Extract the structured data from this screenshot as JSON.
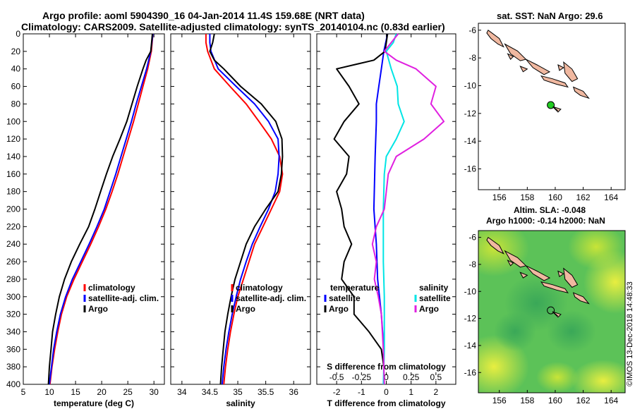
{
  "title_line1": "Argo profile: aoml 5904390_16 04-Jan-2014 11.4S 159.68E (NRT data)",
  "title_line2": "Climatology: CARS2009. Satellite-adjusted climatology: synTS_20140104.nc (0.83d earlier)",
  "watermark": "©IMOS 13-Dec-2018 14:48:33",
  "colors": {
    "climatology": "#ff0000",
    "satellite": "#0000ff",
    "argo": "#000000",
    "satellite_diff_s": "#00e5e5",
    "argo_diff_s": "#e020e0",
    "land": "#f0b8a0",
    "argo_marker": "#22cc22",
    "map_green": "#58c258",
    "map_yellow": "#e0e83a"
  },
  "chart_data": [
    {
      "type": "line",
      "id": "temperature",
      "xlabel": "temperature (deg C)",
      "xlim": [
        5,
        32
      ],
      "ylim": [
        400,
        0
      ],
      "xticks": [
        5,
        10,
        15,
        20,
        25,
        30
      ],
      "yticks": [
        0,
        20,
        40,
        60,
        80,
        100,
        120,
        140,
        160,
        180,
        200,
        220,
        240,
        260,
        280,
        300,
        320,
        340,
        360,
        380,
        400
      ],
      "legend": [
        "climatology",
        "satellite-adj. clim.",
        "Argo"
      ],
      "series": [
        {
          "name": "climatology",
          "color": "#ff0000",
          "depth": [
            0,
            20,
            40,
            60,
            80,
            100,
            120,
            140,
            160,
            180,
            200,
            220,
            240,
            260,
            280,
            300,
            320,
            340,
            360,
            380,
            400
          ],
          "values": [
            29.8,
            29.5,
            28.8,
            27.9,
            27.0,
            26.1,
            25.1,
            24.1,
            23.1,
            22.0,
            20.8,
            19.4,
            17.9,
            16.3,
            14.7,
            13.3,
            12.3,
            11.6,
            11.0,
            10.5,
            10.1
          ]
        },
        {
          "name": "satellite-adj. clim.",
          "color": "#0000ff",
          "depth": [
            0,
            20,
            40,
            60,
            80,
            100,
            120,
            140,
            160,
            180,
            200,
            220,
            240,
            260,
            280,
            300,
            320,
            340,
            360,
            380,
            400
          ],
          "values": [
            29.8,
            29.4,
            28.6,
            27.6,
            26.6,
            25.7,
            24.7,
            23.7,
            22.7,
            21.6,
            20.5,
            19.1,
            17.6,
            16.0,
            14.4,
            13.1,
            12.1,
            11.4,
            10.8,
            10.4,
            10.0
          ]
        },
        {
          "name": "Argo",
          "color": "#000000",
          "depth": [
            0,
            20,
            30,
            40,
            60,
            80,
            100,
            120,
            140,
            160,
            180,
            200,
            220,
            240,
            260,
            280,
            300,
            320,
            340,
            360,
            380,
            400
          ],
          "values": [
            29.7,
            29.4,
            28.5,
            27.9,
            26.8,
            25.8,
            24.8,
            23.5,
            22.1,
            20.9,
            19.8,
            18.7,
            17.5,
            15.8,
            14.2,
            12.9,
            11.9,
            11.2,
            10.6,
            10.3,
            10.0,
            9.8
          ]
        }
      ]
    },
    {
      "type": "line",
      "id": "salinity",
      "xlabel": "salinity",
      "xlim": [
        33.8,
        36.3
      ],
      "ylim": [
        400,
        0
      ],
      "xticks": [
        34,
        34.5,
        35,
        35.5,
        36
      ],
      "legend": [
        "climatology",
        "satellite-adj. clim.",
        "Argo"
      ],
      "series": [
        {
          "name": "climatology",
          "color": "#ff0000",
          "depth": [
            0,
            10,
            20,
            40,
            60,
            80,
            100,
            120,
            140,
            160,
            180,
            200,
            220,
            240,
            260,
            280,
            300,
            320,
            340,
            360,
            380,
            400
          ],
          "values": [
            34.43,
            34.43,
            34.46,
            34.58,
            34.86,
            35.15,
            35.38,
            35.6,
            35.75,
            35.8,
            35.75,
            35.6,
            35.45,
            35.3,
            35.2,
            35.1,
            35.0,
            34.93,
            34.87,
            34.82,
            34.78,
            34.75
          ]
        },
        {
          "name": "satellite-adj. clim.",
          "color": "#0000ff",
          "depth": [
            0,
            10,
            20,
            40,
            60,
            80,
            100,
            120,
            140,
            160,
            180,
            200,
            220,
            240,
            260,
            280,
            300,
            320,
            340,
            360,
            380,
            400
          ],
          "values": [
            34.5,
            34.5,
            34.52,
            34.65,
            34.97,
            35.3,
            35.55,
            35.72,
            35.74,
            35.72,
            35.67,
            35.55,
            35.4,
            35.26,
            35.15,
            35.05,
            34.97,
            34.9,
            34.84,
            34.79,
            34.75,
            34.72
          ]
        },
        {
          "name": "Argo",
          "color": "#000000",
          "depth": [
            0,
            10,
            20,
            30,
            40,
            60,
            80,
            100,
            120,
            140,
            160,
            180,
            200,
            220,
            240,
            260,
            280,
            300,
            320,
            340,
            360,
            380,
            400
          ],
          "values": [
            34.58,
            34.55,
            34.5,
            34.58,
            34.75,
            35.05,
            35.42,
            35.68,
            35.79,
            35.8,
            35.78,
            35.72,
            35.5,
            35.3,
            35.15,
            35.05,
            34.95,
            34.88,
            34.82,
            34.77,
            34.74,
            34.71,
            34.69
          ]
        }
      ]
    },
    {
      "type": "line",
      "id": "difference",
      "xlabel": "T difference from climatology",
      "top_xlabel": "S difference from climatology",
      "xlim": [
        -2.8,
        2.8
      ],
      "ylim": [
        400,
        0
      ],
      "xticks": [
        -2,
        -1,
        0,
        1,
        2
      ],
      "top_xlim": [
        -0.7,
        0.7
      ],
      "top_xticks": [
        -0.5,
        -0.25,
        0,
        0.25,
        0.5
      ],
      "top_xtick_labels": [
        "-0.5",
        "-0.25",
        "0",
        "0.25",
        "0.5"
      ],
      "legend_temperature": {
        "title": "temperature",
        "items": [
          "satellite",
          "Argo"
        ]
      },
      "legend_salinity": {
        "title": "salinity",
        "items": [
          "satellite",
          "Argo"
        ]
      },
      "series": [
        {
          "name": "T satellite",
          "color": "#0000ff",
          "axis": "bottom",
          "depth": [
            0,
            20,
            40,
            60,
            80,
            100,
            140,
            200,
            240,
            280,
            320,
            360,
            400
          ],
          "values": [
            0.05,
            -0.1,
            -0.2,
            -0.3,
            -0.4,
            -0.4,
            -0.45,
            -0.5,
            -0.4,
            -0.35,
            -0.2,
            -0.1,
            -0.1
          ]
        },
        {
          "name": "T Argo",
          "color": "#000000",
          "axis": "bottom",
          "depth": [
            0,
            20,
            30,
            40,
            60,
            80,
            100,
            120,
            140,
            160,
            180,
            200,
            220,
            240,
            260,
            280,
            300,
            320,
            340,
            360,
            380,
            400
          ],
          "values": [
            0.05,
            -0.05,
            -0.5,
            -2.0,
            -1.5,
            -1.1,
            -1.7,
            -2.1,
            -1.5,
            -1.6,
            -2.0,
            -1.8,
            -1.7,
            -1.4,
            -1.7,
            -1.8,
            -1.3,
            -1.3,
            -0.7,
            -0.2,
            -0.1,
            -0.1
          ]
        },
        {
          "name": "S satellite",
          "color": "#00e5e5",
          "axis": "top",
          "depth": [
            0,
            10,
            20,
            40,
            60,
            80,
            100,
            120,
            140,
            160,
            200,
            260,
            300,
            360,
            400
          ],
          "values": [
            0.1,
            0.07,
            0.0,
            0.05,
            0.11,
            0.12,
            0.18,
            0.1,
            0.0,
            -0.02,
            -0.03,
            -0.03,
            -0.02,
            -0.02,
            -0.03
          ]
        },
        {
          "name": "S Argo",
          "color": "#e020e0",
          "axis": "top",
          "depth": [
            0,
            10,
            20,
            30,
            40,
            60,
            80,
            100,
            120,
            140,
            160,
            180,
            200,
            220,
            240,
            260,
            280,
            300,
            320,
            360,
            400
          ],
          "values": [
            0.12,
            0.05,
            -0.02,
            0.1,
            0.3,
            0.5,
            0.45,
            0.58,
            0.38,
            0.1,
            0.02,
            0.0,
            -0.02,
            -0.1,
            -0.14,
            -0.1,
            -0.12,
            -0.08,
            -0.05,
            -0.03,
            -0.02
          ]
        }
      ]
    },
    {
      "type": "map",
      "id": "sst-map",
      "title": "sat. SST: NaN Argo: 29.6",
      "xlim": [
        154.5,
        165
      ],
      "ylim": [
        -17.5,
        -5.5
      ],
      "xticks": [
        156,
        158,
        160,
        162,
        164
      ],
      "yticks": [
        -6,
        -8,
        -10,
        -12,
        -14,
        -16
      ],
      "argo_position": [
        159.68,
        -11.4
      ]
    },
    {
      "type": "map",
      "id": "sla-map",
      "title_line1": "Altim. SLA: -0.048",
      "title_line2": "Argo h1000: -0.14 h2000: NaN",
      "xlim": [
        154.5,
        165
      ],
      "ylim": [
        -17.5,
        -5.5
      ],
      "xticks": [
        156,
        158,
        160,
        162,
        164
      ],
      "yticks": [
        -6,
        -8,
        -10,
        -12,
        -14,
        -16
      ],
      "argo_position": [
        159.68,
        -11.4
      ]
    }
  ]
}
